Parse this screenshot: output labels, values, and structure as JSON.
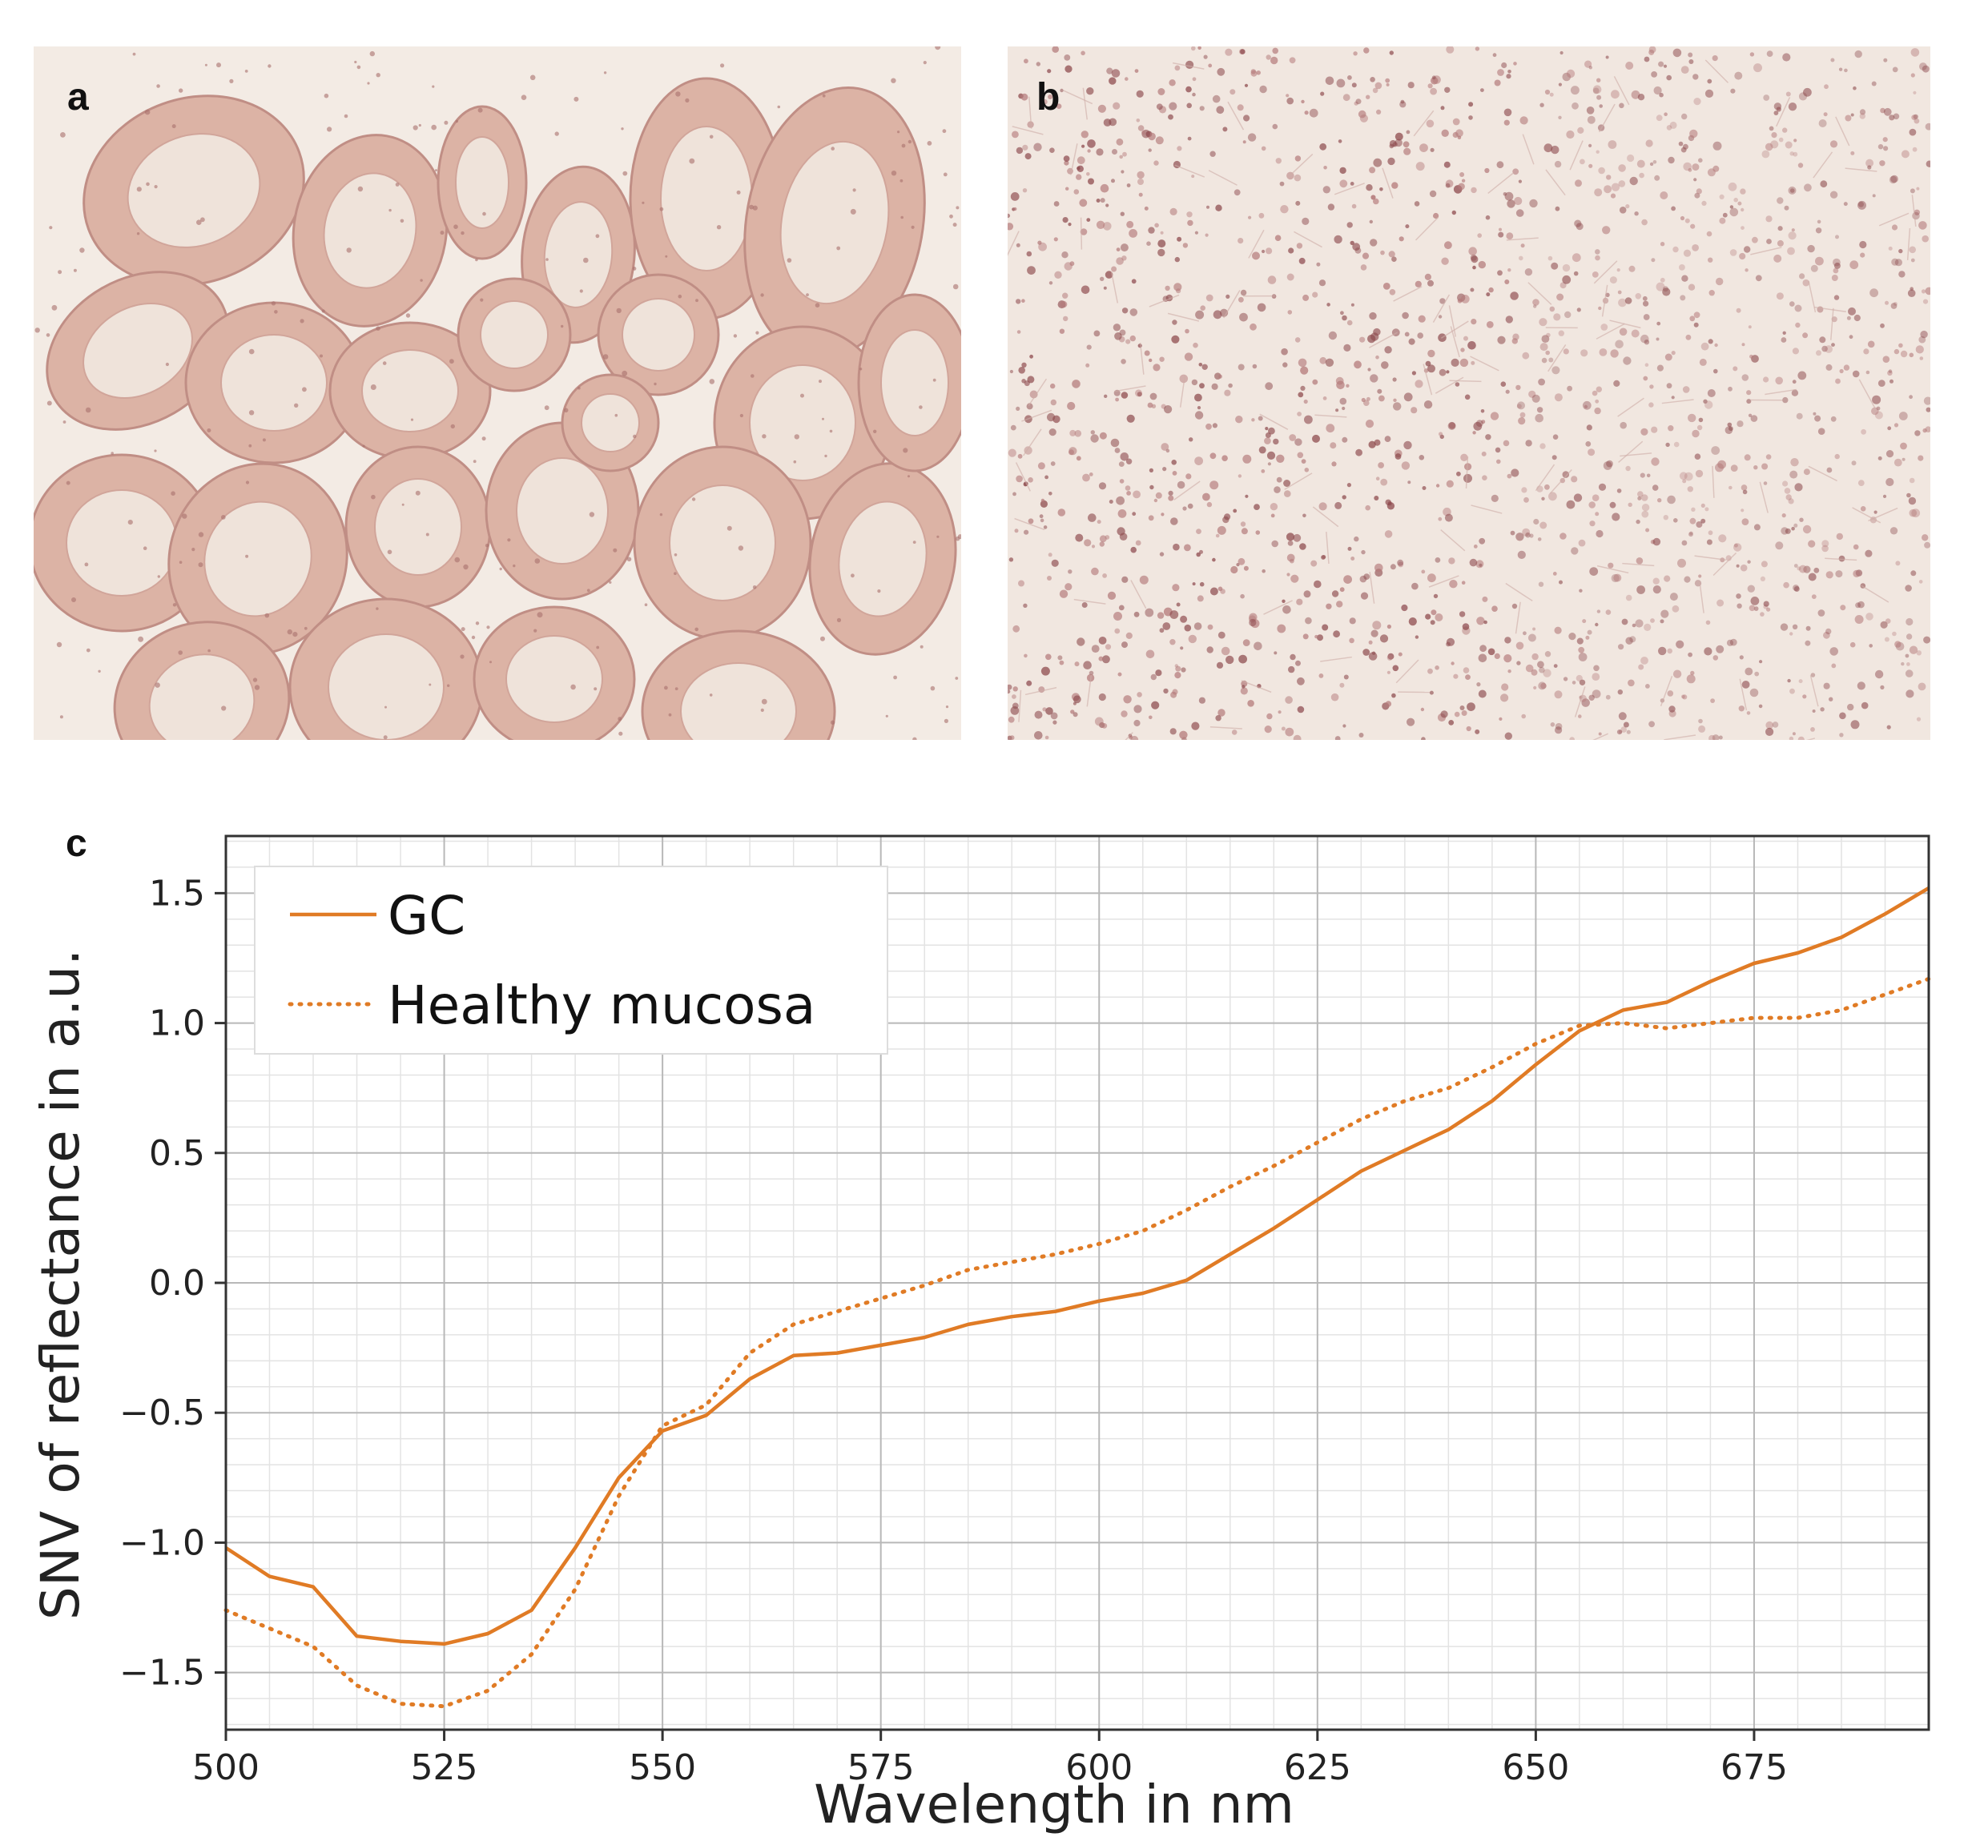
{
  "panels": {
    "a_label": "a",
    "b_label": "b",
    "c_label": "c"
  },
  "colors": {
    "series_line": "#e07b25",
    "tissue_background": "#f3ebe4",
    "tissue_stain": "#c9928a",
    "nuclei": "#8d4a4d"
  },
  "chart_data": {
    "type": "line",
    "xlabel": "Wavelength in nm",
    "ylabel": "SNV of reflectance in a.u.",
    "xlim": [
      500,
      695
    ],
    "ylim": [
      -1.72,
      1.72
    ],
    "xticks": [
      500,
      525,
      550,
      575,
      600,
      625,
      650,
      675
    ],
    "yticks": [
      -1.5,
      -1.0,
      -0.5,
      0.0,
      0.5,
      1.0,
      1.5
    ],
    "xtick_labels": [
      "500",
      "525",
      "550",
      "575",
      "600",
      "625",
      "650",
      "675"
    ],
    "ytick_labels": [
      "−1.5",
      "−1.0",
      "−0.5",
      "0.0",
      "0.5",
      "1.0",
      "1.5"
    ],
    "grid": true,
    "legend_position": "top-left",
    "series": [
      {
        "name": "GC",
        "style": "solid",
        "x": [
          500,
          505,
          510,
          515,
          520,
          525,
          530,
          535,
          540,
          545,
          550,
          555,
          560,
          565,
          570,
          575,
          580,
          585,
          590,
          595,
          600,
          605,
          610,
          615,
          620,
          625,
          630,
          635,
          640,
          645,
          650,
          655,
          660,
          665,
          670,
          675,
          680,
          685,
          690,
          695
        ],
        "values": [
          -1.02,
          -1.13,
          -1.17,
          -1.36,
          -1.38,
          -1.39,
          -1.35,
          -1.26,
          -1.02,
          -0.75,
          -0.57,
          -0.51,
          -0.37,
          -0.28,
          -0.27,
          -0.24,
          -0.21,
          -0.16,
          -0.13,
          -0.11,
          -0.07,
          -0.04,
          0.01,
          0.11,
          0.21,
          0.32,
          0.43,
          0.51,
          0.59,
          0.7,
          0.84,
          0.97,
          1.05,
          1.08,
          1.16,
          1.23,
          1.27,
          1.33,
          1.42,
          1.52
        ]
      },
      {
        "name": "Healthy mucosa",
        "style": "dotted",
        "x": [
          500,
          505,
          510,
          515,
          520,
          525,
          530,
          535,
          540,
          545,
          550,
          555,
          560,
          565,
          570,
          575,
          580,
          585,
          590,
          595,
          600,
          605,
          610,
          615,
          620,
          625,
          630,
          635,
          640,
          645,
          650,
          655,
          660,
          665,
          670,
          675,
          680,
          685,
          690,
          695
        ],
        "values": [
          -1.26,
          -1.33,
          -1.4,
          -1.55,
          -1.62,
          -1.63,
          -1.57,
          -1.43,
          -1.18,
          -0.82,
          -0.55,
          -0.47,
          -0.27,
          -0.16,
          -0.11,
          -0.06,
          -0.01,
          0.05,
          0.08,
          0.11,
          0.15,
          0.2,
          0.28,
          0.37,
          0.45,
          0.54,
          0.63,
          0.7,
          0.75,
          0.83,
          0.92,
          0.99,
          1.0,
          0.98,
          1.0,
          1.02,
          1.02,
          1.05,
          1.11,
          1.17
        ]
      }
    ]
  }
}
